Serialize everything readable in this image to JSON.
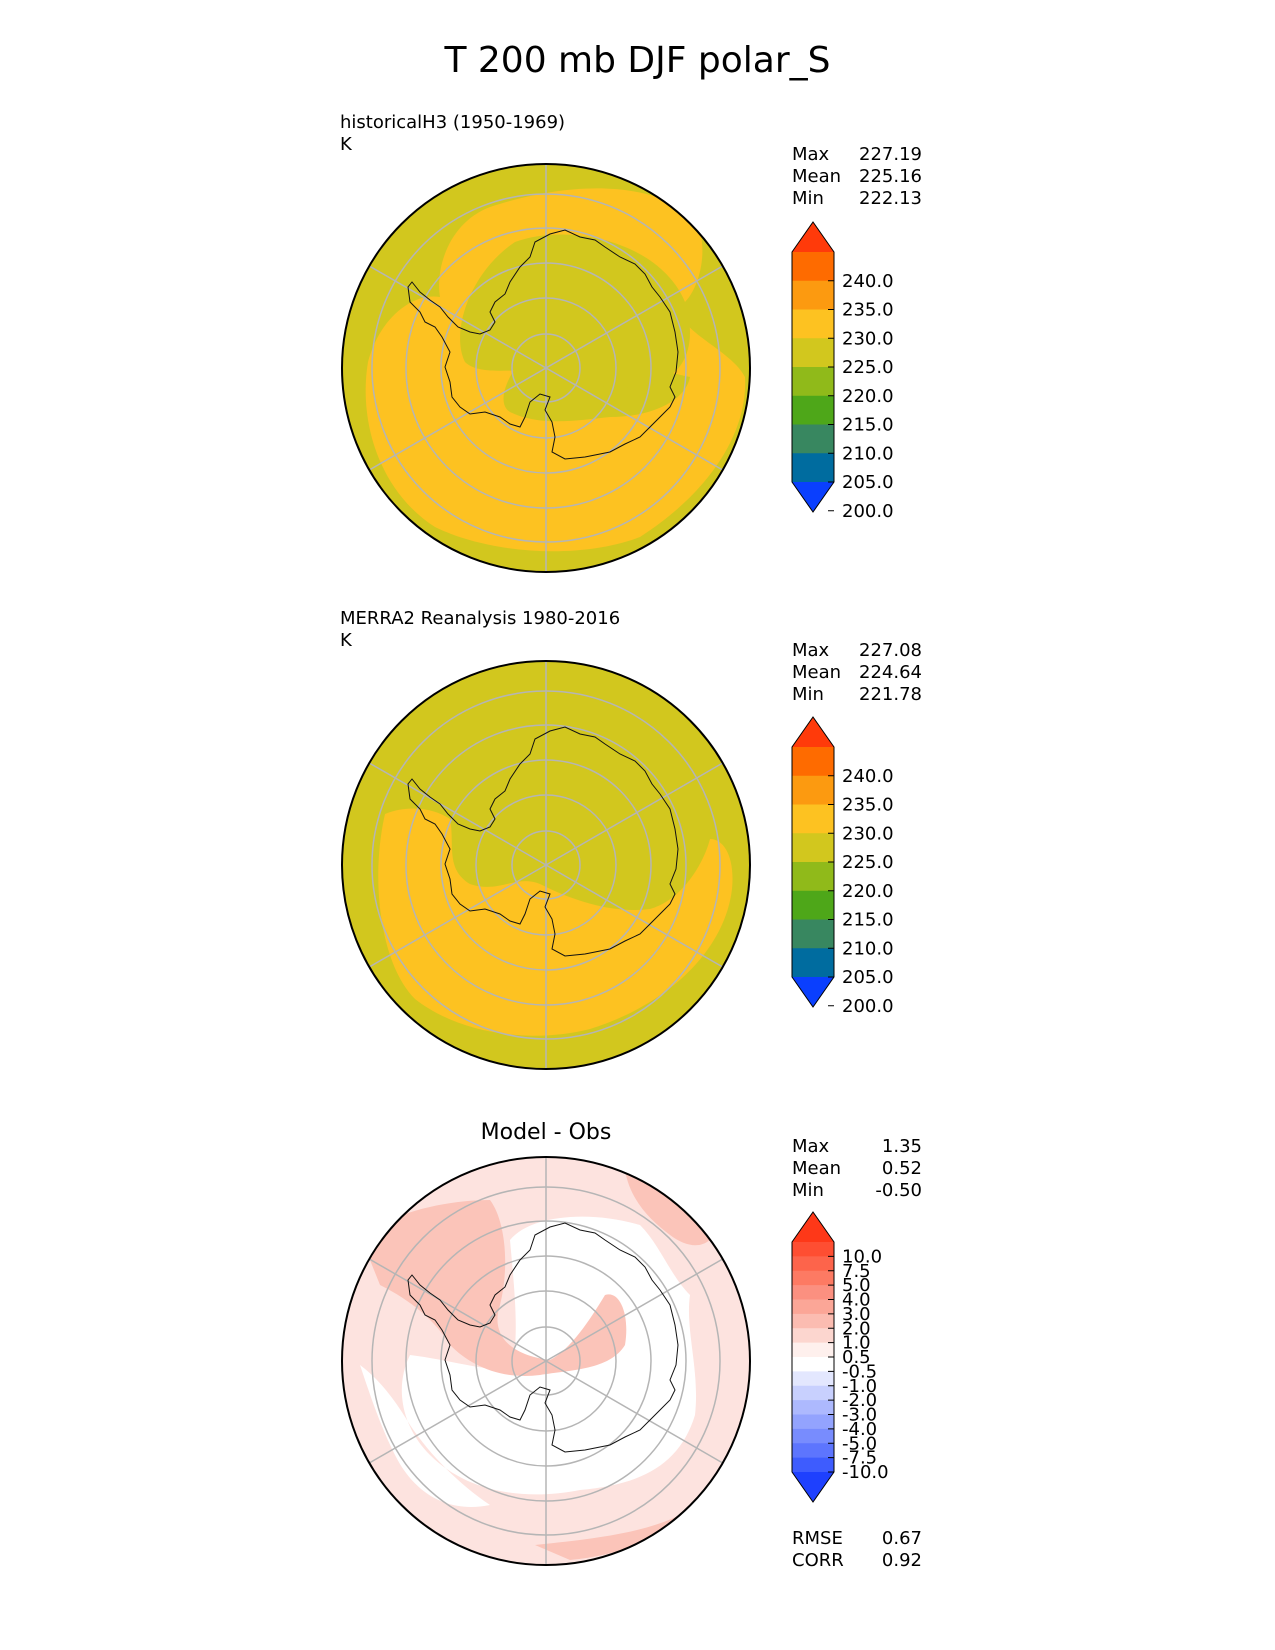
{
  "title": "T 200 mb DJF polar_S",
  "colors": {
    "olive": "#d2c71e",
    "yellow": "#fdc221",
    "grid": "#b5b5b5",
    "coast": "#111111",
    "diff_pink": "#fde3df",
    "diff_salmon": "#fbc4b9",
    "white": "#ffffff"
  },
  "panels": [
    {
      "id": "test",
      "title_line1": "historicalH3 (1950-1969)",
      "title_line2": "K",
      "stats": {
        "max_label": "Max",
        "max": "227.19",
        "mean_label": "Mean",
        "mean": "225.16",
        "min_label": "Min",
        "min": "222.13"
      }
    },
    {
      "id": "ref",
      "title_line1": "MERRA2 Reanalysis 1980-2016",
      "title_line2": "K",
      "stats": {
        "max_label": "Max",
        "max": "227.08",
        "mean_label": "Mean",
        "mean": "224.64",
        "min_label": "Min",
        "min": "221.78"
      }
    },
    {
      "id": "diff",
      "title": "Model - Obs",
      "stats": {
        "max_label": "Max",
        "max": "1.35",
        "mean_label": "Mean",
        "mean": "0.52",
        "min_label": "Min",
        "min": "-0.50"
      },
      "metrics": {
        "rmse_label": "RMSE",
        "rmse": "0.67",
        "corr_label": "CORR",
        "corr": "0.92"
      }
    }
  ],
  "colorbar_main": {
    "ticks": [
      "240.0",
      "235.0",
      "230.0",
      "225.0",
      "220.0",
      "215.0",
      "210.0",
      "205.0",
      "200.0"
    ],
    "colors_top_to_bottom": [
      "#ff3a0a",
      "#fe6b00",
      "#fc9a10",
      "#fdc221",
      "#d2c71e",
      "#90ba1a",
      "#4ea719",
      "#388760",
      "#006c9f",
      "#0a3ffe"
    ]
  },
  "colorbar_diff": {
    "ticks": [
      "10.0",
      "7.5",
      "5.0",
      "4.0",
      "3.0",
      "2.0",
      "1.0",
      "0.5",
      "-0.5",
      "-1.0",
      "-2.0",
      "-3.0",
      "-4.0",
      "-5.0",
      "-7.5",
      "-10.0"
    ],
    "colors_top_to_bottom": [
      "#fe3818",
      "#fe4e32",
      "#fd644b",
      "#fd7a63",
      "#fb9080",
      "#fba697",
      "#fbbcb1",
      "#fcd6cf",
      "#fef0ed",
      "#ffffff",
      "#e3e7fe",
      "#c8d0fe",
      "#adb9fe",
      "#93a3fe",
      "#788cfe",
      "#5d75fe",
      "#3e5cfe",
      "#1e40fe"
    ]
  },
  "chart_data": [
    {
      "type": "heatmap",
      "title": "historicalH3 (1950-1969)",
      "units": "K",
      "projection": "south polar stereographic",
      "levels": [
        200.0,
        205.0,
        210.0,
        215.0,
        220.0,
        225.0,
        230.0,
        235.0,
        240.0
      ],
      "stats": {
        "max": 227.19,
        "mean": 225.16,
        "min": 222.13
      }
    },
    {
      "type": "heatmap",
      "title": "MERRA2 Reanalysis 1980-2016",
      "units": "K",
      "projection": "south polar stereographic",
      "levels": [
        200.0,
        205.0,
        210.0,
        215.0,
        220.0,
        225.0,
        230.0,
        235.0,
        240.0
      ],
      "stats": {
        "max": 227.08,
        "mean": 224.64,
        "min": 221.78
      }
    },
    {
      "type": "heatmap",
      "title": "Model - Obs",
      "projection": "south polar stereographic",
      "levels": [
        -10.0,
        -7.5,
        -5.0,
        -4.0,
        -3.0,
        -2.0,
        -1.0,
        -0.5,
        0.5,
        1.0,
        2.0,
        3.0,
        4.0,
        5.0,
        7.5,
        10.0
      ],
      "stats": {
        "max": 1.35,
        "mean": 0.52,
        "min": -0.5,
        "rmse": 0.67,
        "corr": 0.92
      }
    }
  ]
}
